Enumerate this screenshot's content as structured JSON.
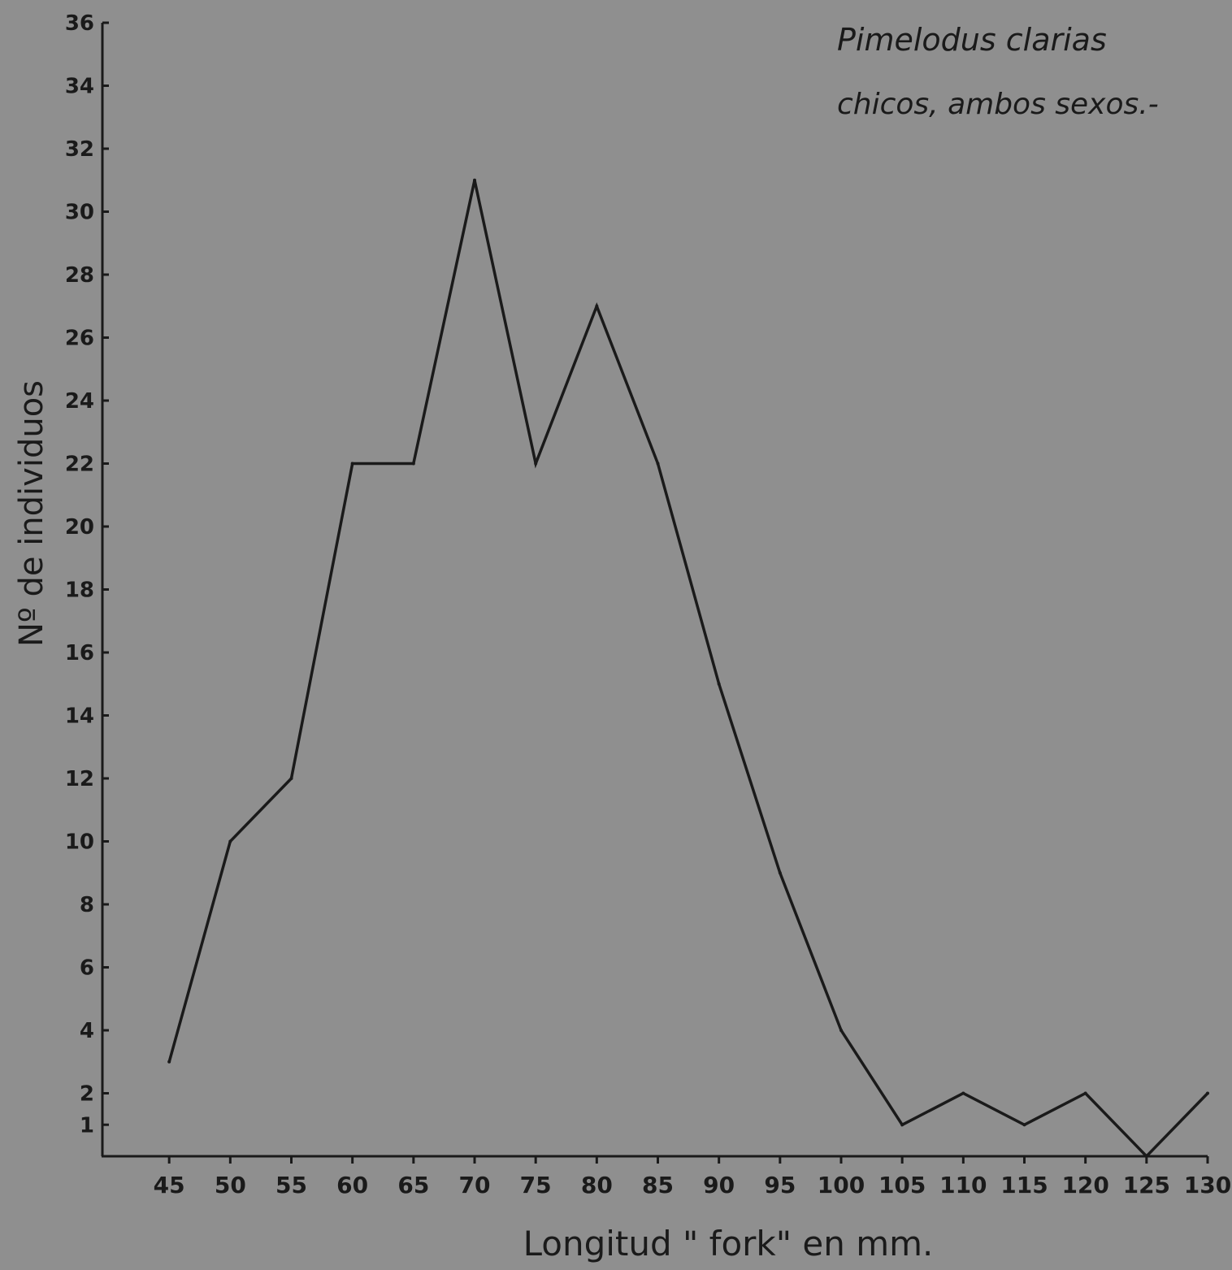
{
  "chart_data": {
    "type": "line",
    "annotation": [
      "Pimelodus clarias",
      "chicos, ambos sexos.-"
    ],
    "xlabel": "Longitud \" fork\" en mm.",
    "ylabel": "Nº de individuos",
    "x": [
      45,
      50,
      55,
      60,
      65,
      70,
      75,
      80,
      85,
      90,
      95,
      100,
      105,
      110,
      115,
      120,
      125,
      130
    ],
    "series": [
      {
        "values": [
          3,
          10,
          12,
          22,
          22,
          31,
          22,
          27,
          22,
          15,
          9,
          4,
          1,
          2,
          1,
          2,
          0,
          2
        ]
      }
    ],
    "xticks": [
      "45",
      "50",
      "55",
      "60",
      "65",
      "70",
      "75",
      "80",
      "85",
      "90",
      "95",
      "100",
      "105",
      "110",
      "115",
      "120",
      "125",
      "130"
    ],
    "yticks": [
      {
        "value": 1,
        "label": "1"
      },
      {
        "value": 2,
        "label": "2"
      },
      {
        "value": 4,
        "label": "4"
      },
      {
        "value": 6,
        "label": "6"
      },
      {
        "value": 8,
        "label": "8"
      },
      {
        "value": 10,
        "label": "10"
      },
      {
        "value": 12,
        "label": "12"
      },
      {
        "value": 14,
        "label": "14"
      },
      {
        "value": 16,
        "label": "16"
      },
      {
        "value": 18,
        "label": "18"
      },
      {
        "value": 20,
        "label": "20"
      },
      {
        "value": 22,
        "label": "22"
      },
      {
        "value": 24,
        "label": "24"
      },
      {
        "value": 26,
        "label": "26"
      },
      {
        "value": 28,
        "label": "28"
      },
      {
        "value": 30,
        "label": "30"
      },
      {
        "value": 32,
        "label": "32"
      },
      {
        "value": 34,
        "label": "34"
      },
      {
        "value": 36,
        "label": "36"
      }
    ],
    "xlim": [
      40,
      130
    ],
    "ylim": [
      0,
      36
    ],
    "grid": false,
    "legend": "none"
  },
  "colors": {
    "background": "#8f8f8f",
    "ink": "#1a1a1a"
  }
}
